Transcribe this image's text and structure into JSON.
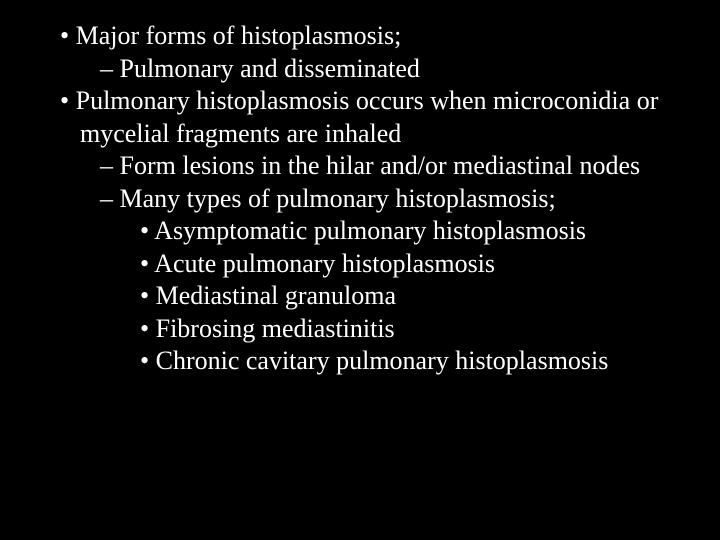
{
  "slide": {
    "background_color": "#000000",
    "text_color": "#ffffff",
    "font_family": "Times New Roman",
    "font_size_pt": 26,
    "lines": [
      {
        "level": 1,
        "bullet": "dot",
        "text": "Major forms of histoplasmosis;"
      },
      {
        "level": 2,
        "bullet": "dash",
        "text": "Pulmonary and disseminated"
      },
      {
        "level": 1,
        "bullet": "dot",
        "text": "Pulmonary histoplasmosis occurs when microconidia or mycelial fragments are inhaled"
      },
      {
        "level": 2,
        "bullet": "dash",
        "text": "Form lesions in the hilar and/or mediastinal nodes"
      },
      {
        "level": 2,
        "bullet": "dash",
        "text": "Many types of pulmonary histoplasmosis;"
      },
      {
        "level": 3,
        "bullet": "dot",
        "text": "Asymptomatic pulmonary histoplasmosis"
      },
      {
        "level": 3,
        "bullet": "dot",
        "text": "Acute pulmonary histoplasmosis"
      },
      {
        "level": 3,
        "bullet": "dot",
        "text": "Mediastinal granuloma"
      },
      {
        "level": 3,
        "bullet": "dot",
        "text": "Fibrosing mediastinitis"
      },
      {
        "level": 3,
        "bullet": "dot",
        "text": "Chronic cavitary pulmonary histoplasmosis"
      }
    ]
  }
}
